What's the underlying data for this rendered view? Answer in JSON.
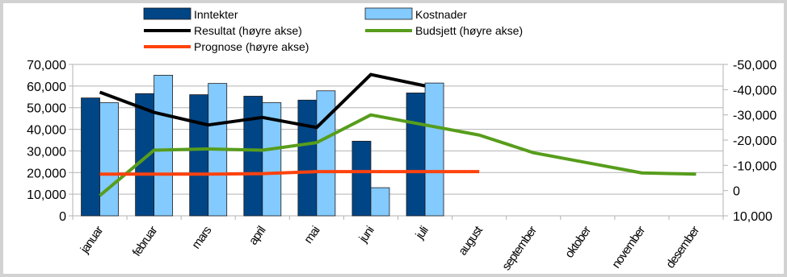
{
  "chart_data": {
    "type": "bar",
    "categories": [
      "januar",
      "februar",
      "mars",
      "april",
      "mai",
      "juni",
      "juli",
      "august",
      "september",
      "oktober",
      "november",
      "desember"
    ],
    "bar_series": [
      {
        "name": "Inntekter",
        "color": "#004586",
        "values": [
          54500,
          56500,
          56000,
          55300,
          53500,
          34500,
          56800,
          null,
          null,
          null,
          null,
          null
        ]
      },
      {
        "name": "Kostnader",
        "color": "#83caff",
        "values": [
          52300,
          65000,
          61200,
          52300,
          57800,
          13000,
          61400,
          null,
          null,
          null,
          null,
          null
        ]
      }
    ],
    "line_series": [
      {
        "name": "Resultat (høyre akse)",
        "color": "#000000",
        "axis": "right",
        "values": [
          -39000,
          -31000,
          -26000,
          -29000,
          -25000,
          -46000,
          -41500,
          null,
          null,
          null,
          null,
          null
        ]
      },
      {
        "name": "Budsjett (høyre akse)",
        "color": "#579d1c",
        "axis": "right",
        "values": [
          2000,
          -16000,
          -16500,
          -16000,
          -19000,
          -30000,
          -26000,
          -22000,
          -15000,
          -11000,
          -7000,
          -6500
        ]
      },
      {
        "name": "Prognose (høyre akse)",
        "color": "#ff420e",
        "axis": "right",
        "values": [
          -6500,
          -6500,
          -6500,
          -6700,
          -7500,
          -7500,
          -7500,
          -7500,
          null,
          null,
          null,
          null
        ]
      }
    ],
    "y_left": {
      "min": 0,
      "max": 70000,
      "ticks": [
        "0",
        "10,000",
        "20,000",
        "30,000",
        "40,000",
        "50,000",
        "60,000",
        "70,000"
      ]
    },
    "y_right": {
      "min": 10000,
      "max": -50000,
      "ticks": [
        "10,000",
        "0",
        "-10,000",
        "-20,000",
        "-30,000",
        "-40,000",
        "-50,000"
      ]
    },
    "grid": true,
    "legend_position": "top"
  }
}
